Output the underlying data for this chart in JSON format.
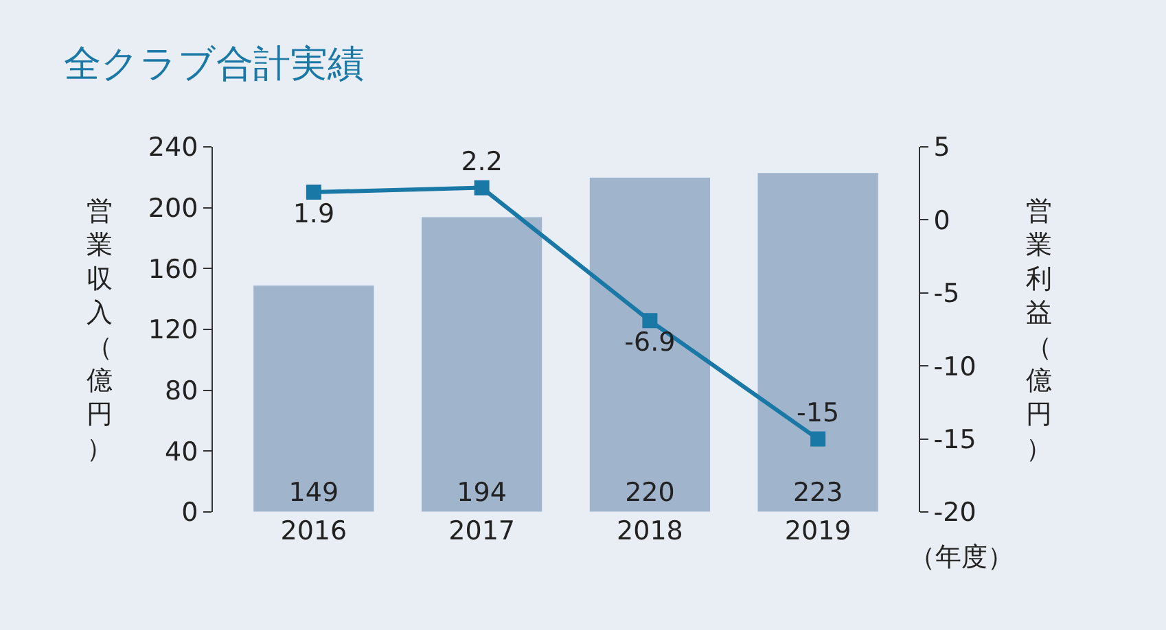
{
  "chart_data": {
    "type": "bar",
    "title": "全クラブ合計実績",
    "xlabel": "（年度）",
    "ylabel": "営業収入（億円）",
    "y2label": "営業利益（億円）",
    "categories": [
      "2016",
      "2017",
      "2018",
      "2019"
    ],
    "series": [
      {
        "color": "#a0b4cc",
        "values": [
          149,
          194,
          220,
          223
        ]
      },
      {
        "type": "line",
        "axis": "y2",
        "color": "#1a78a6",
        "values": [
          1.9,
          2.2,
          -6.9,
          -15
        ],
        "marker": "square"
      }
    ],
    "ylim": [
      0,
      240
    ],
    "yticks": [
      0,
      40,
      80,
      120,
      160,
      200,
      240
    ],
    "y2lim": [
      -20,
      5
    ],
    "y2ticks": [
      -20,
      -15,
      -10,
      -5,
      0,
      5
    ],
    "data_labels": true,
    "grid": false
  }
}
